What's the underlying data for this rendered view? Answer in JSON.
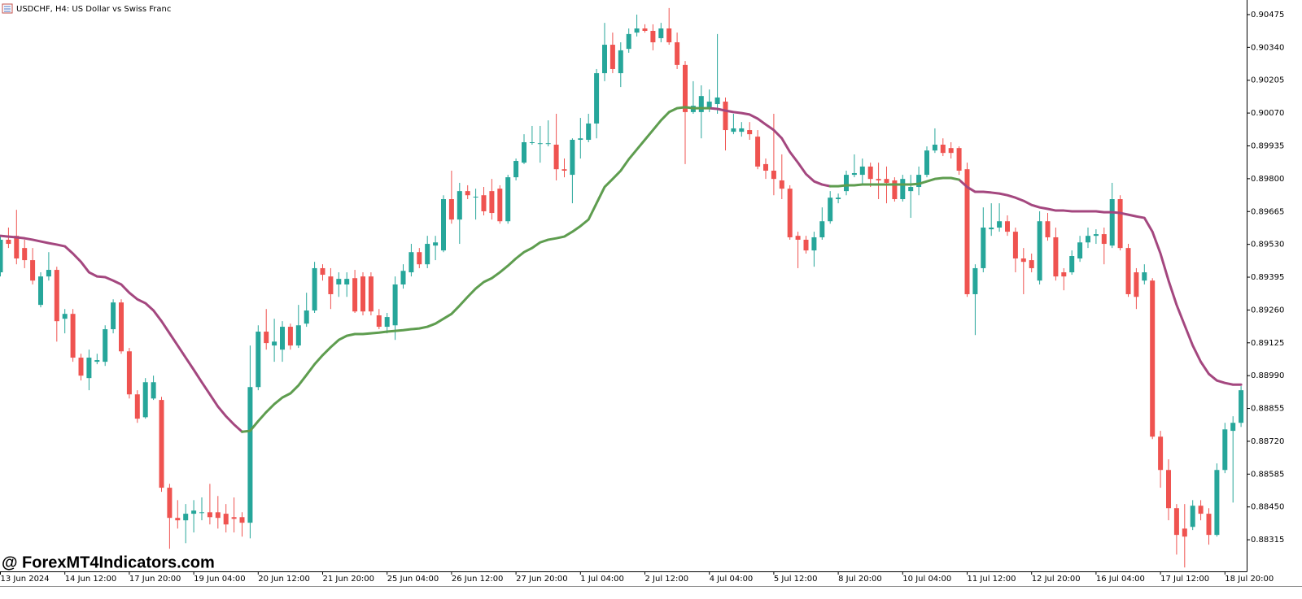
{
  "chart_data": {
    "type": "candlestick",
    "title": "USDCHF, H4:  US Dollar vs Swiss Franc",
    "watermark": "@ ForexMT4Indicators.com",
    "up_color": "#26a69a",
    "down_color": "#ef5350",
    "categories": [
      "13 Jun 2024",
      null,
      null,
      null,
      null,
      null,
      null,
      null,
      "14 Jun 12:00",
      null,
      null,
      null,
      null,
      null,
      null,
      null,
      "17 Jun 20:00",
      null,
      null,
      null,
      null,
      null,
      null,
      null,
      "19 Jun 04:00",
      null,
      null,
      null,
      null,
      null,
      null,
      null,
      "20 Jun 12:00",
      null,
      null,
      null,
      null,
      null,
      null,
      null,
      "21 Jun 20:00",
      null,
      null,
      null,
      null,
      null,
      null,
      null,
      "25 Jun 04:00",
      null,
      null,
      null,
      null,
      null,
      null,
      null,
      "26 Jun 12:00",
      null,
      null,
      null,
      null,
      null,
      null,
      null,
      "27 Jun 20:00",
      null,
      null,
      null,
      null,
      null,
      null,
      null,
      "1 Jul 04:00",
      null,
      null,
      null,
      null,
      null,
      null,
      null,
      "2 Jul 12:00",
      null,
      null,
      null,
      null,
      null,
      null,
      null,
      "4 Jul 04:00",
      null,
      null,
      null,
      null,
      null,
      null,
      null,
      "5 Jul 12:00",
      null,
      null,
      null,
      null,
      null,
      null,
      null,
      "8 Jul 20:00",
      null,
      null,
      null,
      null,
      null,
      null,
      null,
      "10 Jul 04:00",
      null,
      null,
      null,
      null,
      null,
      null,
      null,
      "11 Jul 12:00",
      null,
      null,
      null,
      null,
      null,
      null,
      null,
      "12 Jul 20:00",
      null,
      null,
      null,
      null,
      null,
      null,
      null,
      "16 Jul 04:00",
      null,
      null,
      null,
      null,
      null,
      null,
      null,
      "17 Jul 12:00",
      null,
      null,
      null,
      null,
      null,
      null,
      null,
      "18 Jul 20:00",
      null,
      null
    ],
    "open": [
      0.89415,
      0.89549,
      0.89565,
      0.89515,
      0.89465,
      0.89281,
      0.89398,
      0.89425,
      0.89224,
      0.89244,
      0.89064,
      0.8898,
      0.89047,
      0.89047,
      0.89181,
      0.89291,
      0.8909,
      0.88913,
      0.88819,
      0.88896,
      0.8889,
      0.88529,
      0.88405,
      0.88395,
      0.88422,
      0.88428,
      0.88428,
      0.88428,
      0.88422,
      0.88408,
      0.88408,
      0.88385,
      0.88943,
      0.89171,
      0.89114,
      0.89097,
      0.89191,
      0.89114,
      0.89204,
      0.89258,
      0.89432,
      0.89398,
      0.89365,
      0.89365,
      0.89391,
      0.89398,
      0.89398,
      0.89238,
      0.89191,
      0.89197,
      0.89365,
      0.89415,
      0.89498,
      0.89448,
      0.89525,
      0.89505,
      0.89716,
      0.89632,
      0.89749,
      0.89726,
      0.89732,
      0.89749,
      0.89759,
      0.89625,
      0.89806,
      0.89866,
      0.8995,
      0.89946,
      0.89946,
      0.8994,
      0.89839,
      0.89816,
      0.8996,
      0.8996,
      0.90027,
      0.90234,
      0.90351,
      0.90234,
      0.90334,
      0.90401,
      0.90418,
      0.90408,
      0.90378,
      0.90418,
      0.90361,
      0.90268,
      0.90074,
      0.90074,
      0.90094,
      0.90107,
      0.90117,
      0.89993,
      0.89993,
      0.9,
      0.89973,
      0.8986,
      0.89833,
      0.89793,
      0.89759,
      0.89565,
      0.89549,
      0.89505,
      0.89559,
      0.89625,
      0.89716,
      0.89749,
      0.89816,
      0.89816,
      0.8985,
      0.89799,
      0.89799,
      0.89793,
      0.89716,
      0.89749,
      0.89766,
      0.89816,
      0.89916,
      0.8994,
      0.89926,
      0.89926,
      0.89839,
      0.89325,
      0.89432,
      0.89592,
      0.89599,
      0.89625,
      0.89582,
      0.89472,
      0.89465,
      0.89381,
      0.89625,
      0.89559,
      0.89415,
      0.89415,
      0.89472,
      0.89538,
      0.89565,
      0.89572,
      0.89525,
      0.89716,
      0.89515,
      0.89415,
      0.89381,
      0.89381,
      0.88739,
      0.88602,
      0.88445,
      0.88361,
      0.88368,
      0.88455,
      0.88422,
      0.88335,
      0.88602,
      0.88763,
      0.88796
    ],
    "high": [
      0.89565,
      0.89599,
      0.89672,
      0.89549,
      0.89515,
      0.89415,
      0.89498,
      0.89438,
      0.89264,
      0.89264,
      0.8908,
      0.89097,
      0.8908,
      0.89197,
      0.89304,
      0.89304,
      0.89104,
      0.8893,
      0.8898,
      0.8899,
      0.88903,
      0.88545,
      0.88478,
      0.88462,
      0.88478,
      0.88489,
      0.88545,
      0.88495,
      0.88462,
      0.88489,
      0.88428,
      0.89114,
      0.89197,
      0.89264,
      0.89224,
      0.89214,
      0.89204,
      0.89281,
      0.89331,
      0.89458,
      0.89448,
      0.89432,
      0.89415,
      0.89415,
      0.89425,
      0.89415,
      0.89415,
      0.89264,
      0.89248,
      0.89398,
      0.89448,
      0.89532,
      0.89515,
      0.89565,
      0.89565,
      0.89732,
      0.89833,
      0.89783,
      0.89773,
      0.89759,
      0.89766,
      0.89799,
      0.89773,
      0.89816,
      0.89883,
      0.89983,
      0.90017,
      0.90017,
      0.9004,
      0.90067,
      0.89883,
      0.89966,
      0.9005,
      0.90067,
      0.90251,
      0.90441,
      0.90401,
      0.90361,
      0.90418,
      0.90475,
      0.90435,
      0.90435,
      0.90441,
      0.90502,
      0.90401,
      0.90284,
      0.90201,
      0.90184,
      0.90167,
      0.90395,
      0.90134,
      0.90067,
      0.90033,
      0.90033,
      0.9,
      0.89883,
      0.90067,
      0.899,
      0.89773,
      0.89582,
      0.89565,
      0.89582,
      0.89682,
      0.89749,
      0.89739,
      0.89833,
      0.899,
      0.89883,
      0.89866,
      0.89866,
      0.8985,
      0.89806,
      0.89816,
      0.89816,
      0.8985,
      0.89933,
      0.90007,
      0.89966,
      0.8995,
      0.89933,
      0.89866,
      0.89448,
      0.89682,
      0.89699,
      0.89699,
      0.89649,
      0.89599,
      0.89515,
      0.89492,
      0.89666,
      0.89659,
      0.89599,
      0.89432,
      0.89505,
      0.89565,
      0.89599,
      0.89592,
      0.89599,
      0.89783,
      0.89732,
      0.89532,
      0.89432,
      0.89448,
      0.89391,
      0.88763,
      0.88646,
      0.88462,
      0.88462,
      0.88478,
      0.88478,
      0.88445,
      0.88629,
      0.88796,
      0.88823,
      0.88947
    ],
    "low": [
      0.89398,
      0.89515,
      0.89448,
      0.89432,
      0.89365,
      0.89271,
      0.89381,
      0.8913,
      0.89164,
      0.89047,
      0.8897,
      0.8893,
      0.89037,
      0.8903,
      0.89164,
      0.8908,
      0.88896,
      0.88796,
      0.88813,
      0.8889,
      0.88512,
      0.88278,
      0.88361,
      0.88301,
      0.88345,
      0.88395,
      0.88378,
      0.88361,
      0.88345,
      0.88345,
      0.88328,
      0.88321,
      0.8893,
      0.89097,
      0.89047,
      0.89047,
      0.89097,
      0.89104,
      0.89191,
      0.89248,
      0.89381,
      0.89264,
      0.89314,
      0.89314,
      0.89248,
      0.89238,
      0.89238,
      0.89181,
      0.89164,
      0.89137,
      0.89348,
      0.89398,
      0.89432,
      0.89432,
      0.89465,
      0.89498,
      0.89615,
      0.89532,
      0.89716,
      0.89632,
      0.89649,
      0.89632,
      0.89615,
      0.89615,
      0.89793,
      0.8986,
      0.8994,
      0.89866,
      0.89933,
      0.89793,
      0.89806,
      0.89699,
      0.89883,
      0.8995,
      0.89966,
      0.90201,
      0.90234,
      0.90177,
      0.90318,
      0.90385,
      0.90401,
      0.90328,
      0.90361,
      0.90351,
      0.90251,
      0.8986,
      0.90067,
      0.89966,
      0.90074,
      0.90067,
      0.89916,
      0.89983,
      0.89973,
      0.8996,
      0.89839,
      0.89799,
      0.89732,
      0.89716,
      0.89549,
      0.89432,
      0.89492,
      0.89438,
      0.89549,
      0.89615,
      0.89699,
      0.89732,
      0.89806,
      0.89773,
      0.89766,
      0.89716,
      0.89699,
      0.89706,
      0.89706,
      0.89639,
      0.89732,
      0.89806,
      0.89906,
      0.89893,
      0.89883,
      0.89816,
      0.89314,
      0.89157,
      0.89415,
      0.89565,
      0.89582,
      0.89565,
      0.89415,
      0.89325,
      0.89415,
      0.89365,
      0.89545,
      0.89381,
      0.89341,
      0.89405,
      0.89458,
      0.89515,
      0.89532,
      0.89448,
      0.89515,
      0.89505,
      0.89314,
      0.89264,
      0.89365,
      0.88729,
      0.88529,
      0.88395,
      0.88254,
      0.88201,
      0.88355,
      0.88395,
      0.88295,
      0.88328,
      0.88589,
      0.88468,
      0.88779
    ],
    "close": [
      0.89549,
      0.89532,
      0.89472,
      0.89465,
      0.89381,
      0.89398,
      0.89425,
      0.89214,
      0.89244,
      0.89064,
      0.8899,
      0.89064,
      0.89054,
      0.89181,
      0.89291,
      0.8909,
      0.88913,
      0.88813,
      0.88963,
      0.88963,
      0.88529,
      0.88405,
      0.88395,
      0.88422,
      0.88435,
      0.88428,
      0.88408,
      0.88405,
      0.88378,
      0.88401,
      0.88385,
      0.88943,
      0.89171,
      0.89124,
      0.8913,
      0.89191,
      0.89114,
      0.89197,
      0.89258,
      0.89432,
      0.89405,
      0.89325,
      0.89388,
      0.89388,
      0.89254,
      0.89254,
      0.89254,
      0.89191,
      0.89231,
      0.89365,
      0.89421,
      0.89498,
      0.89448,
      0.89532,
      0.89538,
      0.89716,
      0.89632,
      0.89749,
      0.89732,
      0.89726,
      0.89666,
      0.89659,
      0.89625,
      0.89806,
      0.89873,
      0.8995,
      0.8995,
      0.89946,
      0.89946,
      0.89839,
      0.89833,
      0.8996,
      0.89966,
      0.90027,
      0.90234,
      0.90351,
      0.90251,
      0.90328,
      0.90395,
      0.90418,
      0.90408,
      0.90361,
      0.90418,
      0.90361,
      0.90268,
      0.90074,
      0.901,
      0.9014,
      0.90117,
      0.90134,
      0.9,
      0.90007,
      0.90007,
      0.89983,
      0.8985,
      0.89833,
      0.89799,
      0.89759,
      0.89559,
      0.89549,
      0.89505,
      0.89559,
      0.89625,
      0.89722,
      0.89722,
      0.89816,
      0.89823,
      0.8985,
      0.89799,
      0.89793,
      0.89783,
      0.89716,
      0.89799,
      0.89766,
      0.89816,
      0.89916,
      0.8994,
      0.89906,
      0.89906,
      0.89833,
      0.89325,
      0.89432,
      0.89599,
      0.89599,
      0.89625,
      0.89582,
      0.89472,
      0.89458,
      0.89432,
      0.89625,
      0.89559,
      0.89398,
      0.89398,
      0.89482,
      0.89538,
      0.89565,
      0.89572,
      0.89532,
      0.89716,
      0.89515,
      0.89325,
      0.89314,
      0.89415,
      0.88739,
      0.88602,
      0.88445,
      0.88335,
      0.88328,
      0.88455,
      0.88422,
      0.88335,
      0.88602,
      0.88769,
      0.88796,
      0.8893
    ],
    "lines": [
      {
        "color": "#a4477f",
        "values": [
          0.89565,
          0.89562,
          0.89559,
          0.89555,
          0.89549,
          0.89542,
          0.89535,
          0.89529,
          0.89522,
          0.89492,
          0.89458,
          0.89415,
          0.89398,
          0.89395,
          0.89381,
          0.89365,
          0.89331,
          0.89304,
          0.89288,
          0.89258,
          0.89214,
          0.89164,
          0.89114,
          0.89064,
          0.89014,
          0.88963,
          0.88913,
          0.88863,
          0.88823,
          0.88789,
          0.88759,
          null,
          null,
          null,
          null,
          null,
          null,
          null,
          null,
          null,
          null,
          null,
          null,
          null,
          null,
          null,
          null,
          null,
          null,
          null,
          null,
          null,
          null,
          null,
          null,
          null,
          null,
          null,
          null,
          null,
          null,
          null,
          null,
          null,
          null,
          null,
          null,
          null,
          null,
          null,
          null,
          null,
          null,
          null,
          null,
          null,
          null,
          null,
          null,
          null,
          null,
          null,
          null,
          null,
          null,
          null,
          null,
          null,
          0.9009,
          0.90087,
          0.9008,
          0.90074,
          0.9007,
          0.90064,
          0.90047,
          0.90023,
          0.9,
          0.89966,
          0.8991,
          0.89866,
          0.89819,
          0.89789,
          0.89776,
          0.89769,
          null,
          null,
          null,
          null,
          null,
          null,
          null,
          null,
          null,
          null,
          null,
          null,
          null,
          null,
          null,
          0.89796,
          0.89766,
          0.89746,
          0.89746,
          0.89743,
          0.89739,
          0.89732,
          0.89722,
          0.89709,
          0.89692,
          0.89682,
          0.89676,
          0.89669,
          0.89669,
          0.89666,
          0.89666,
          0.89666,
          0.89666,
          0.89662,
          0.89662,
          0.89659,
          0.89652,
          0.89645,
          0.89639,
          0.89582,
          0.89492,
          0.89381,
          0.89281,
          0.89197,
          0.89114,
          0.89047,
          0.88997,
          0.8897,
          0.8896,
          0.88953,
          0.88953
        ]
      },
      {
        "color": "#5e9d4f",
        "values": [
          null,
          null,
          null,
          null,
          null,
          null,
          null,
          null,
          null,
          null,
          null,
          null,
          null,
          null,
          null,
          null,
          null,
          null,
          null,
          null,
          null,
          null,
          null,
          null,
          null,
          null,
          null,
          null,
          null,
          null,
          0.88759,
          0.88763,
          0.88803,
          0.8884,
          0.88873,
          0.889,
          0.88917,
          0.8895,
          0.88993,
          0.89037,
          0.89074,
          0.89107,
          0.89137,
          0.89154,
          0.89161,
          0.89161,
          0.89164,
          0.89167,
          0.89171,
          0.89174,
          0.89177,
          0.89181,
          0.89184,
          0.89191,
          0.89204,
          0.89224,
          0.89244,
          0.89278,
          0.89314,
          0.89348,
          0.89375,
          0.89391,
          0.89415,
          0.89442,
          0.89472,
          0.89498,
          0.89515,
          0.89538,
          0.89549,
          0.89555,
          0.89562,
          0.89582,
          0.89605,
          0.89632,
          0.89699,
          0.89766,
          0.89799,
          0.89833,
          0.8988,
          0.8992,
          0.8996,
          0.9,
          0.9004,
          0.90074,
          0.9009,
          0.90094,
          0.9009,
          0.9009,
          0.9009,
          null,
          null,
          null,
          null,
          null,
          null,
          null,
          null,
          null,
          null,
          null,
          null,
          null,
          null,
          0.89769,
          0.89769,
          0.89773,
          0.89773,
          0.89776,
          0.89776,
          0.89776,
          0.89776,
          0.89776,
          0.89776,
          0.89776,
          0.89779,
          0.89789,
          0.89799,
          0.89803,
          0.89803,
          0.89796,
          null,
          null,
          null,
          null,
          null,
          null,
          null,
          null,
          null,
          null,
          null,
          null,
          null,
          null,
          null,
          null,
          null,
          null,
          null,
          null,
          null,
          null,
          null,
          null,
          null,
          null,
          null,
          null,
          null,
          null,
          null,
          null,
          null,
          null,
          null
        ]
      }
    ],
    "ylim": [
      0.88185,
      0.90535
    ],
    "yticks": [
      0.90475,
      {
        "value": 0.9034,
        "label": "0.90340"
      },
      0.90205,
      {
        "value": 0.9007,
        "label": "0.90070"
      },
      0.89935,
      {
        "value": 0.898,
        "label": "0.89800"
      },
      0.89665,
      {
        "value": 0.8953,
        "label": "0.89530"
      },
      0.89395,
      {
        "value": 0.8926,
        "label": "0.89260"
      },
      0.89125,
      {
        "value": 0.8899,
        "label": "0.88990"
      },
      0.88855,
      {
        "value": 0.8872,
        "label": "0.88720"
      },
      0.88585,
      {
        "value": 0.8845,
        "label": "0.88450"
      },
      0.88315
    ]
  }
}
